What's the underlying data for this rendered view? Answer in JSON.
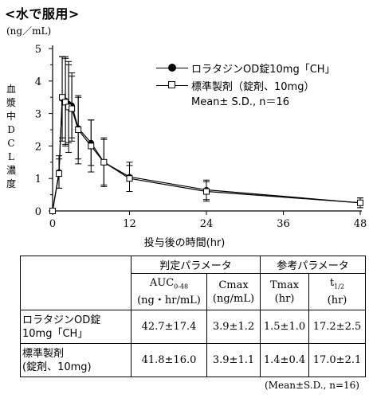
{
  "title": "<水で服用>",
  "y_unit": "(ng／mL)",
  "y_axis_label": "血漿中DCL濃度",
  "x_axis_label": "投与後の時間(hr)",
  "legend": {
    "series1": "ロラタジンOD錠10mg「CH」",
    "series2": "標準製剤（錠剤、10mg）",
    "note": "Mean± S.D., n＝16"
  },
  "chart_data": {
    "type": "line",
    "title": "<水で服用>",
    "xlabel": "投与後の時間(hr)",
    "ylabel": "血漿中DCL濃度 (ng／mL)",
    "xlim": [
      0,
      48
    ],
    "ylim": [
      0,
      5
    ],
    "xticks": [
      "0",
      "12",
      "24",
      "36",
      "48"
    ],
    "yticks": [
      "0",
      "1",
      "2",
      "3",
      "4",
      "5"
    ],
    "legend_position": "top-right",
    "grid": false,
    "series": [
      {
        "name": "ロラタジンOD錠10mg「CH」",
        "marker": "filled-circle",
        "x": [
          0,
          1,
          1.5,
          2,
          2.5,
          3,
          4,
          6,
          8,
          12,
          24,
          48
        ],
        "y": [
          0.0,
          1.2,
          3.45,
          3.4,
          3.3,
          3.25,
          2.55,
          2.1,
          1.5,
          1.05,
          0.65,
          0.25
        ],
        "sd": [
          0.0,
          0.5,
          1.3,
          1.35,
          1.2,
          1.0,
          0.95,
          0.7,
          0.7,
          0.45,
          0.3,
          0.15
        ]
      },
      {
        "name": "標準製剤（錠剤、10mg）",
        "marker": "open-square",
        "x": [
          0,
          1,
          1.5,
          2,
          2.5,
          3,
          4,
          6,
          8,
          12,
          24,
          48
        ],
        "y": [
          0.0,
          1.15,
          3.5,
          3.35,
          3.2,
          3.15,
          2.5,
          2.0,
          1.5,
          1.0,
          0.6,
          0.25
        ],
        "sd": [
          0.0,
          0.45,
          1.25,
          1.35,
          1.4,
          1.0,
          1.05,
          0.8,
          0.75,
          0.4,
          0.3,
          0.15
        ]
      }
    ]
  },
  "table": {
    "group1_header": "判定パラメータ",
    "group2_header": "参考パラメータ",
    "col_auc": "AUC",
    "col_auc_sub": "0-48",
    "col_auc_unit": "(ng・hr/mL)",
    "col_cmax": "Cmax",
    "col_cmax_unit": "(ng/mL)",
    "col_tmax": "Tmax",
    "col_tmax_unit": "(hr)",
    "col_t": "t",
    "col_t_sub": "1/2",
    "col_t_unit": "(hr)",
    "rows": [
      {
        "label_line1": "ロラタジンOD錠",
        "label_line2": "10mg「CH」",
        "auc": "42.7±17.4",
        "cmax": "3.9±1.2",
        "tmax": "1.5±1.0",
        "thalf": "17.2±2.5"
      },
      {
        "label_line1": "標準製剤",
        "label_line2": "(錠剤、10mg)",
        "auc": "41.8±16.0",
        "cmax": "3.9±1.1",
        "tmax": "1.4±0.4",
        "thalf": "17.0±2.1"
      }
    ]
  },
  "footnote": "(Mean±S.D., n=16)"
}
